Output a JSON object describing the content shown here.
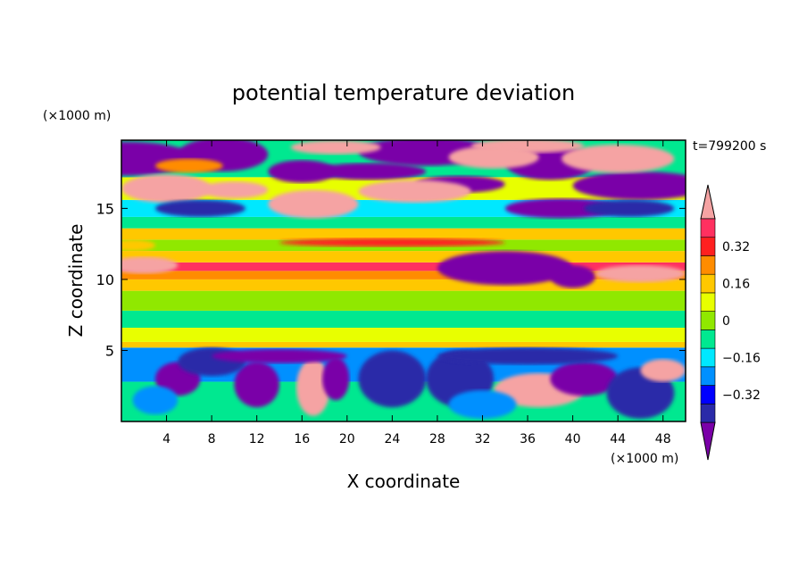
{
  "chart_data": {
    "type": "heatmap",
    "title": "potential temperature deviation",
    "time_label": "t=799200 s",
    "xlabel": "X coordinate",
    "ylabel": "Z coordinate",
    "x_units": "(×1000 m)",
    "y_units": "(×1000 m)",
    "xlim": [
      0,
      50
    ],
    "ylim": [
      0,
      19.8
    ],
    "x_ticks": [
      4,
      8,
      12,
      16,
      20,
      24,
      28,
      32,
      36,
      40,
      44,
      48
    ],
    "y_ticks": [
      5,
      10,
      15
    ],
    "colorbar": {
      "levels": [
        -0.48,
        -0.4,
        -0.32,
        -0.24,
        -0.16,
        -0.08,
        0,
        0.08,
        0.16,
        0.24,
        0.32,
        0.4,
        0.48
      ],
      "tick_labels": [
        "0.32",
        "0.16",
        "0",
        "−0.16",
        "−0.32"
      ],
      "tick_values": [
        0.32,
        0.16,
        0,
        -0.16,
        -0.32
      ],
      "colors": [
        "#7a00a8",
        "#2a2aa8",
        "#0000ff",
        "#0090ff",
        "#00e8ff",
        "#00e890",
        "#90e800",
        "#e8ff00",
        "#ffc800",
        "#ff8c00",
        "#ff2020",
        "#ff3060",
        "#f5a3a3"
      ],
      "extend": "both"
    }
  }
}
